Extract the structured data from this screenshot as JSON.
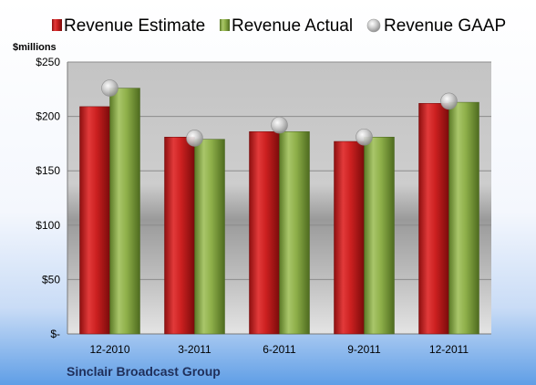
{
  "chart_data": {
    "type": "bar",
    "categories": [
      "12-2010",
      "3-2011",
      "6-2011",
      "9-2011",
      "12-2011"
    ],
    "series": [
      {
        "name": "Revenue Estimate",
        "kind": "bar",
        "color": "#cc2020",
        "values": [
          209,
          181,
          186,
          177,
          212
        ]
      },
      {
        "name": "Revenue Actual",
        "kind": "bar",
        "color": "#8fb04a",
        "values": [
          226,
          179,
          186,
          181,
          213
        ]
      },
      {
        "name": "Revenue GAAP",
        "kind": "marker",
        "color": "#c0c0c0",
        "values": [
          226,
          180,
          192,
          181,
          214
        ]
      }
    ],
    "yunit": "$millions",
    "yticks": [
      0,
      50,
      100,
      150,
      200,
      250
    ],
    "ytick_labels": [
      "$-",
      "$50",
      "$100",
      "$150",
      "$200",
      "$250"
    ],
    "ylim": [
      0,
      250
    ],
    "grid": true,
    "legend_position": "top",
    "company": "Sinclair Broadcast Group"
  }
}
